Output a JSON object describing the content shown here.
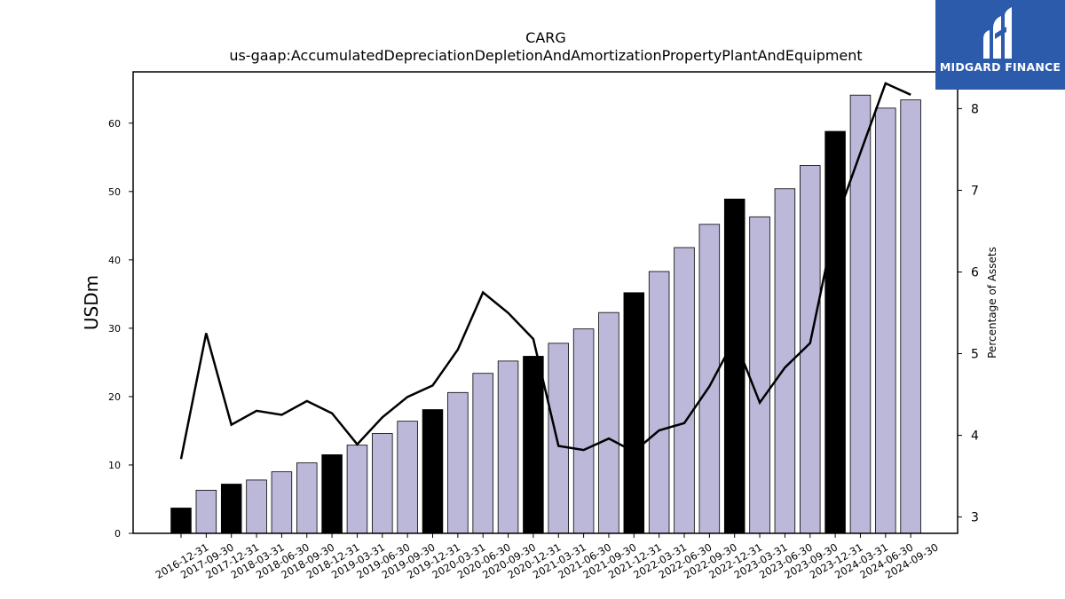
{
  "chart_data": {
    "type": "bar",
    "title": "CARG",
    "subtitle": "us-gaap:AccumulatedDepreciationDepletionAndAmortizationPropertyPlantAndEquipment",
    "ylabel": "USDm",
    "y2label": "Percentage of Assets",
    "ylim": [
      0,
      67.5
    ],
    "y2lim": [
      2.8,
      8.45
    ],
    "yticks": [
      0,
      10,
      20,
      30,
      40,
      50,
      60
    ],
    "y2ticks": [
      3,
      4,
      5,
      6,
      7,
      8
    ],
    "categories": [
      "2016-12-31",
      "2017-09-30",
      "2017-12-31",
      "2018-03-31",
      "2018-06-30",
      "2018-09-30",
      "2018-12-31",
      "2019-03-31",
      "2019-06-30",
      "2019-09-30",
      "2019-12-31",
      "2020-03-31",
      "2020-06-30",
      "2020-09-30",
      "2020-12-31",
      "2021-03-31",
      "2021-06-30",
      "2021-09-30",
      "2021-12-31",
      "2022-03-31",
      "2022-06-30",
      "2022-09-30",
      "2022-12-31",
      "2023-03-31",
      "2023-06-30",
      "2023-09-30",
      "2023-12-31",
      "2024-03-31",
      "2024-06-30",
      "2024-09-30"
    ],
    "series": [
      {
        "type": "bar",
        "values": [
          3.7,
          6.3,
          7.2,
          7.8,
          9.0,
          10.3,
          11.5,
          12.9,
          14.6,
          16.4,
          18.1,
          20.6,
          23.4,
          25.2,
          25.9,
          27.8,
          29.9,
          32.3,
          35.2,
          38.3,
          41.8,
          45.2,
          48.9,
          46.3,
          50.4,
          53.8,
          58.8,
          64.1,
          62.2,
          63.4
        ],
        "highlight": [
          true,
          false,
          true,
          false,
          false,
          false,
          true,
          false,
          false,
          false,
          true,
          false,
          false,
          false,
          true,
          false,
          false,
          false,
          true,
          false,
          false,
          false,
          true,
          false,
          false,
          false,
          true,
          false,
          false,
          false
        ]
      },
      {
        "type": "line",
        "axis": "right",
        "values": [
          3.71,
          5.25,
          4.13,
          4.3,
          4.25,
          4.42,
          4.27,
          3.89,
          4.22,
          4.47,
          4.61,
          5.05,
          5.75,
          5.5,
          5.18,
          3.87,
          3.82,
          3.96,
          3.8,
          4.06,
          4.15,
          4.6,
          5.18,
          4.4,
          4.83,
          5.13,
          6.6,
          7.46,
          8.31,
          8.17
        ]
      }
    ],
    "colors": {
      "bar": "#bcb8da",
      "highlight": "#000000",
      "line": "#000000"
    }
  },
  "logo": {
    "text": "MIDGARD FINANCE",
    "color": "#2d5bab"
  }
}
